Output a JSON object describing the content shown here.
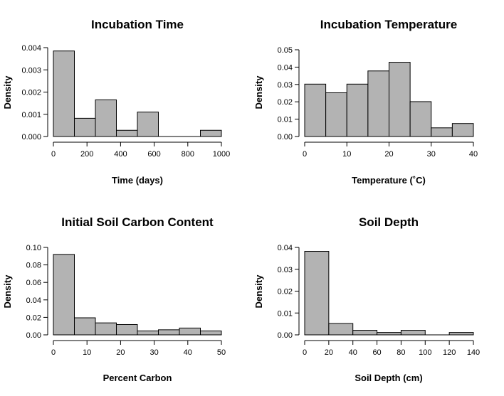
{
  "chart_data": [
    {
      "type": "bar",
      "title": "Incubation Time",
      "xlabel": "Time (days)",
      "ylabel": "Density",
      "bin_edges": [
        0,
        125,
        250,
        375,
        500,
        625,
        750,
        875,
        1000
      ],
      "values": [
        0.00385,
        0.00082,
        0.00165,
        0.00028,
        0.0011,
        0.0,
        0.0,
        0.00028
      ],
      "xlim": [
        0,
        1000
      ],
      "ylim": [
        0,
        0.004
      ],
      "xticks": [
        0,
        200,
        400,
        600,
        800,
        1000
      ],
      "xtick_labels": [
        "0",
        "200",
        "400",
        "600",
        "800",
        "1000"
      ],
      "yticks": [
        0,
        0.001,
        0.002,
        0.003,
        0.004
      ],
      "ytick_labels": [
        "0.000",
        "0.001",
        "0.002",
        "0.003",
        "0.004"
      ],
      "grid": false
    },
    {
      "type": "bar",
      "title": "Incubation Temperature",
      "xlabel": "Temperature (˚C)",
      "ylabel": "Density",
      "bin_edges": [
        0,
        5,
        10,
        15,
        20,
        25,
        30,
        35,
        40
      ],
      "values": [
        0.0302,
        0.0252,
        0.0302,
        0.0378,
        0.0428,
        0.0201,
        0.005,
        0.0075
      ],
      "xlim": [
        0,
        40
      ],
      "ylim": [
        0,
        0.05
      ],
      "xticks": [
        0,
        10,
        20,
        30,
        40
      ],
      "xtick_labels": [
        "0",
        "10",
        "20",
        "30",
        "40"
      ],
      "yticks": [
        0,
        0.01,
        0.02,
        0.03,
        0.04,
        0.05
      ],
      "ytick_labels": [
        "0.00",
        "0.01",
        "0.02",
        "0.03",
        "0.04",
        "0.05"
      ],
      "grid": false
    },
    {
      "type": "bar",
      "title": "Initial Soil Carbon Content",
      "xlabel": "Percent Carbon",
      "ylabel": "Density",
      "bin_edges": [
        0,
        6.25,
        12.5,
        18.75,
        25,
        31.25,
        37.5,
        43.75,
        50
      ],
      "values": [
        0.092,
        0.0195,
        0.0137,
        0.0118,
        0.0045,
        0.0058,
        0.0078,
        0.0045
      ],
      "xlim": [
        0,
        50
      ],
      "ylim": [
        0,
        0.1
      ],
      "xticks": [
        0,
        10,
        20,
        30,
        40,
        50
      ],
      "xtick_labels": [
        "0",
        "10",
        "20",
        "30",
        "40",
        "50"
      ],
      "yticks": [
        0,
        0.02,
        0.04,
        0.06,
        0.08,
        0.1
      ],
      "ytick_labels": [
        "0.00",
        "0.02",
        "0.04",
        "0.06",
        "0.08",
        "0.10"
      ],
      "grid": false
    },
    {
      "type": "bar",
      "title": "Soil Depth",
      "xlabel": "Soil Depth (cm)",
      "ylabel": "Density",
      "bin_edges": [
        0,
        20,
        40,
        60,
        80,
        100,
        120,
        140
      ],
      "values": [
        0.0382,
        0.0052,
        0.0021,
        0.0011,
        0.0021,
        0.0,
        0.0011
      ],
      "xlim": [
        0,
        140
      ],
      "ylim": [
        0,
        0.04
      ],
      "xticks": [
        0,
        20,
        40,
        60,
        80,
        100,
        120,
        140
      ],
      "xtick_labels": [
        "0",
        "20",
        "40",
        "60",
        "80",
        "100",
        "120",
        "140"
      ],
      "yticks": [
        0,
        0.01,
        0.02,
        0.03,
        0.04
      ],
      "ytick_labels": [
        "0.00",
        "0.01",
        "0.02",
        "0.03",
        "0.04"
      ],
      "grid": false
    }
  ]
}
